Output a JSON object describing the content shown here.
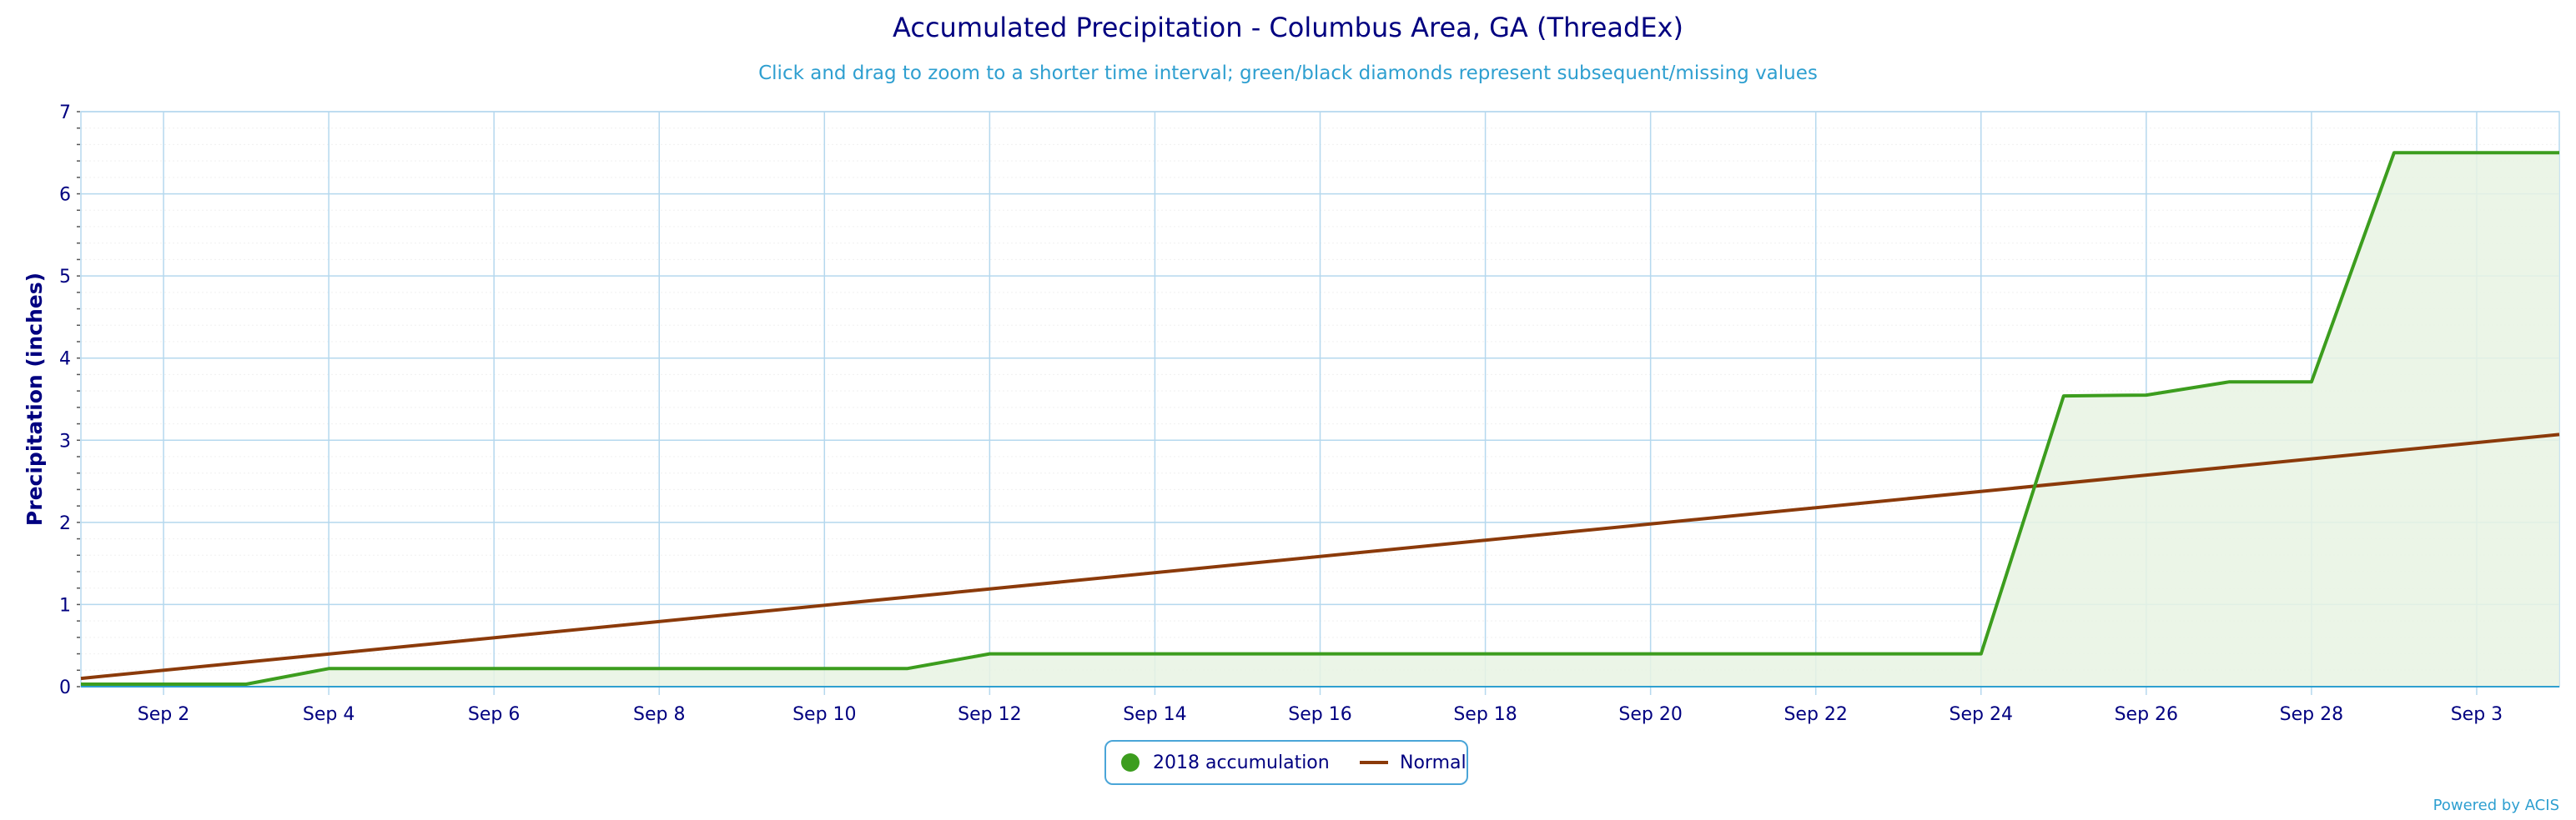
{
  "title": "Accumulated Precipitation - Columbus Area, GA (ThreadEx)",
  "subtitle": "Click and drag to zoom to a shorter time interval; green/black diamonds represent subsequent/missing values",
  "legend": {
    "series1": "2018 accumulation",
    "series2": "Normal"
  },
  "credits": "Powered by ACIS",
  "chart_data": {
    "type": "line",
    "ylabel": "Precipitation (inches)",
    "ylim": [
      0,
      7
    ],
    "yticks": [
      0,
      1,
      2,
      3,
      4,
      5,
      6,
      7
    ],
    "xlim": [
      1,
      31
    ],
    "xticks": [
      {
        "day": 2,
        "label": "Sep 2"
      },
      {
        "day": 4,
        "label": "Sep 4"
      },
      {
        "day": 6,
        "label": "Sep 6"
      },
      {
        "day": 8,
        "label": "Sep 8"
      },
      {
        "day": 10,
        "label": "Sep 10"
      },
      {
        "day": 12,
        "label": "Sep 12"
      },
      {
        "day": 14,
        "label": "Sep 14"
      },
      {
        "day": 16,
        "label": "Sep 16"
      },
      {
        "day": 18,
        "label": "Sep 18"
      },
      {
        "day": 20,
        "label": "Sep 20"
      },
      {
        "day": 22,
        "label": "Sep 22"
      },
      {
        "day": 24,
        "label": "Sep 24"
      },
      {
        "day": 26,
        "label": "Sep 26"
      },
      {
        "day": 28,
        "label": "Sep 28"
      },
      {
        "day": 30,
        "label": "Sep 3"
      }
    ],
    "grid": true,
    "legend_position": "bottom-center",
    "series": [
      {
        "name": "2018 accumulation",
        "color": "#3c9d1e",
        "fill": "#e8f3e3",
        "x": [
          1,
          2,
          3,
          4,
          5,
          6,
          7,
          8,
          9,
          10,
          11,
          12,
          13,
          14,
          15,
          16,
          17,
          18,
          19,
          20,
          21,
          22,
          23,
          24,
          25,
          26,
          27,
          28,
          29,
          30,
          31
        ],
        "values": [
          0.03,
          0.03,
          0.03,
          0.22,
          0.22,
          0.22,
          0.22,
          0.22,
          0.22,
          0.22,
          0.22,
          0.4,
          0.4,
          0.4,
          0.4,
          0.4,
          0.4,
          0.4,
          0.4,
          0.4,
          0.4,
          0.4,
          0.4,
          0.4,
          3.54,
          3.55,
          3.71,
          3.71,
          6.5,
          6.5,
          6.5
        ]
      },
      {
        "name": "Normal",
        "color": "#8b3a0a",
        "x": [
          1,
          31
        ],
        "values": [
          0.1,
          3.07
        ]
      }
    ]
  }
}
